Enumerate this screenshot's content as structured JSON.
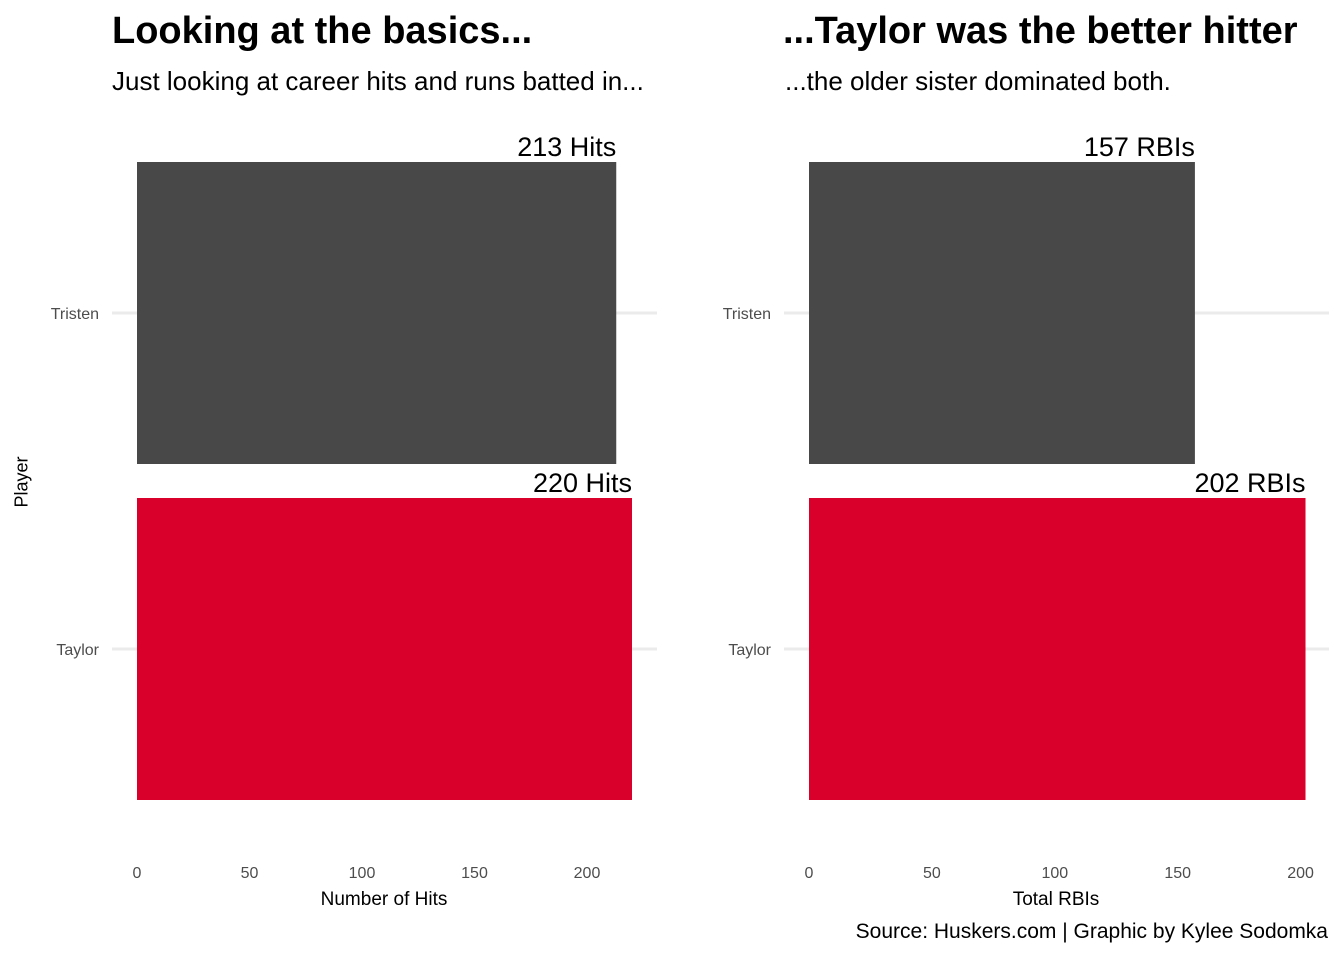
{
  "chart_data": [
    {
      "type": "bar",
      "orientation": "horizontal",
      "title": "Looking at the basics...",
      "subtitle": "Just looking at career hits and runs batted in...",
      "xlabel": "Number of Hits",
      "ylabel": "Player",
      "xlim": [
        0,
        220
      ],
      "x_ticks": [
        "0",
        "50",
        "100",
        "150",
        "200"
      ],
      "categories": [
        "Tristen",
        "Taylor"
      ],
      "values": [
        213,
        220
      ],
      "data_labels": [
        "213 Hits",
        "220 Hits"
      ],
      "colors": [
        "#484848",
        "#d9002b"
      ],
      "grid": "horizontal major only"
    },
    {
      "type": "bar",
      "orientation": "horizontal",
      "title": "...Taylor was the better hitter",
      "subtitle": "...the older sister dominated both.",
      "xlabel": "Total RBIs",
      "ylabel": "",
      "xlim": [
        0,
        202
      ],
      "x_ticks": [
        "0",
        "50",
        "100",
        "150",
        "200"
      ],
      "categories": [
        "Tristen",
        "Taylor"
      ],
      "values": [
        157,
        202
      ],
      "data_labels": [
        "157 RBIs",
        "202 RBIs"
      ],
      "colors": [
        "#484848",
        "#d9002b"
      ],
      "grid": "horizontal major only"
    }
  ],
  "caption": "Source: Huskers.com | Graphic by Kylee Sodomka"
}
